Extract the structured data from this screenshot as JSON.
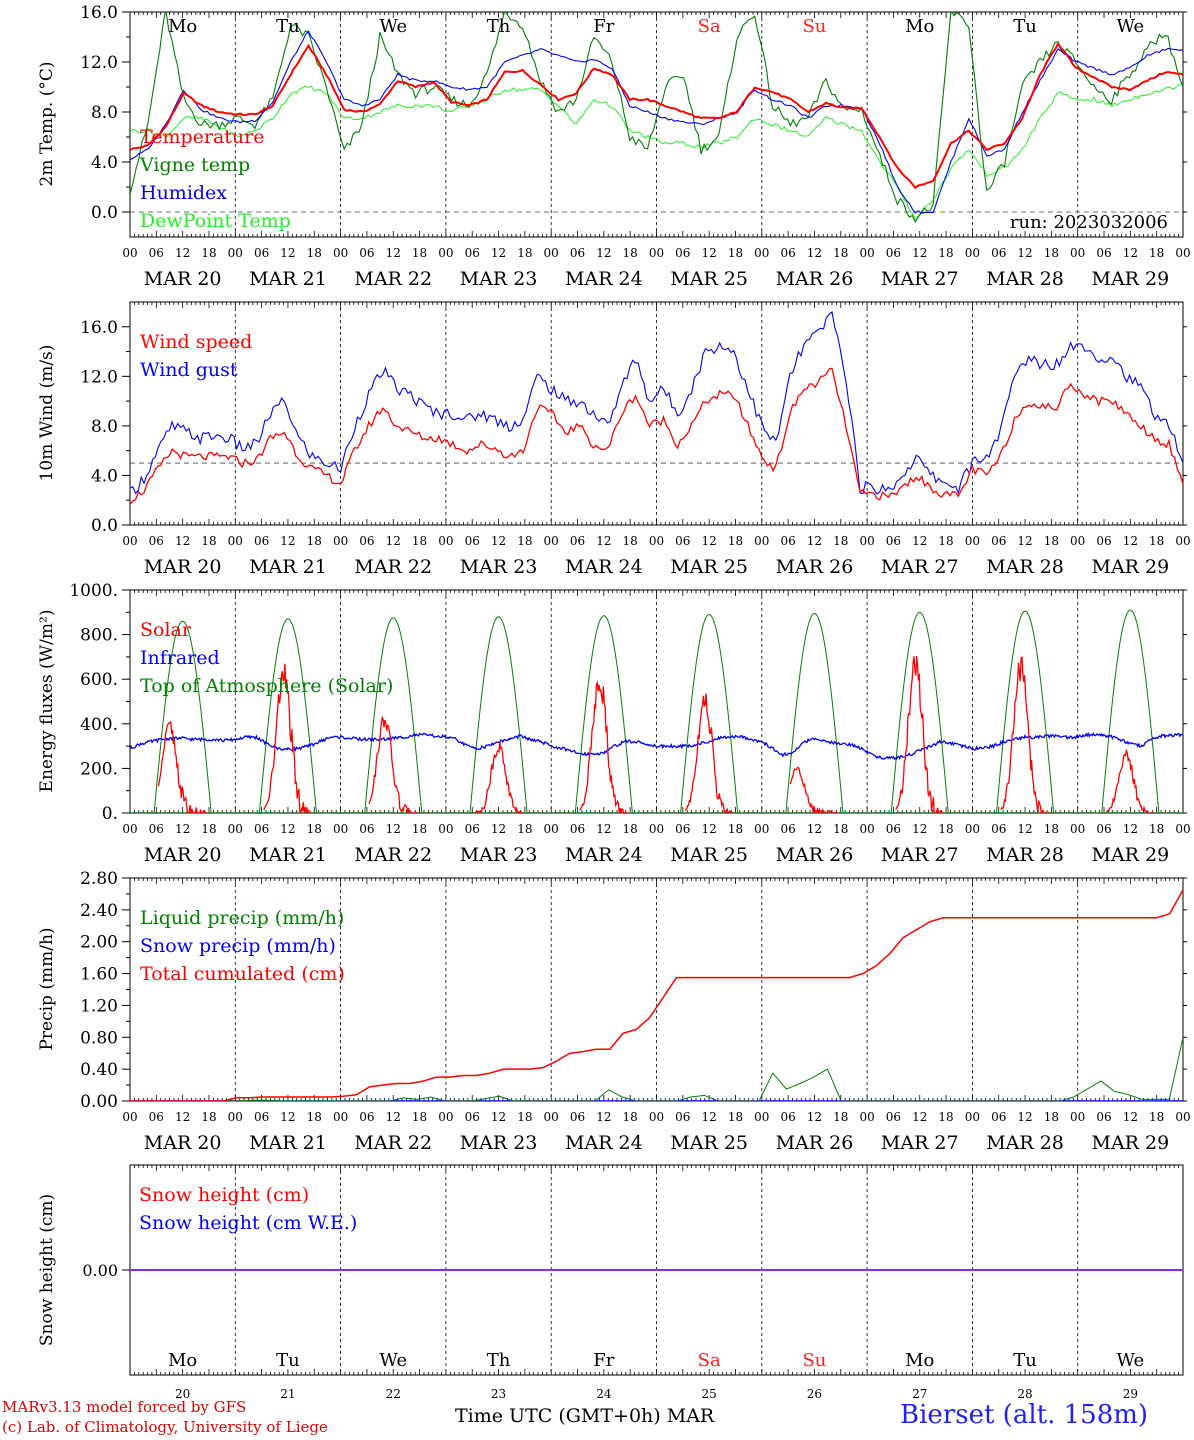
{
  "colors": {
    "red": "#ff0000",
    "dgreen": "#008000",
    "blue": "#0000ff",
    "lgreen": "#22ee22",
    "purple": "#8a2be2",
    "weekend": "#ff2020"
  },
  "days": [
    "Mo",
    "Tu",
    "We",
    "Th",
    "Fr",
    "Sa",
    "Su",
    "Mo",
    "Tu",
    "We"
  ],
  "weekend_days": [
    "Sa",
    "Su"
  ],
  "hour_labels": [
    "00",
    "06",
    "12",
    "18"
  ],
  "end_hour_label": "00",
  "date_labels": [
    "MAR 20",
    "MAR 21",
    "MAR 22",
    "MAR 23",
    "MAR 24",
    "MAR 25",
    "MAR 26",
    "MAR 27",
    "MAR 28",
    "MAR 29"
  ],
  "bottom_day_numbers": [
    "20",
    "21",
    "22",
    "23",
    "24",
    "25",
    "26",
    "27",
    "28",
    "29"
  ],
  "run_label": "run: 2023032006",
  "x_title": "Time UTC (GMT+0h)",
  "x_month": "MAR",
  "credit_line1": "MARv3.13 model forced by GFS",
  "credit_line2": "(c) Lab. of Climatology, University of Liege",
  "station": "Bierset (alt. 158m)",
  "chart_data": [
    {
      "type": "line",
      "ylabel": "2m Temp. (°C)",
      "ylim": [
        -2,
        16
      ],
      "yticks": [
        "16.0",
        "12.0",
        "8.0",
        "4.0",
        "0.0"
      ],
      "ref_line": 0,
      "x_unit": "hours since 2023-03-20 00 UTC, 3-hourly, 0-240",
      "series": [
        {
          "name": "Temperature",
          "color": "red",
          "values": [
            5,
            5.3,
            6.8,
            9.5,
            8.5,
            8,
            7.8,
            7.8,
            8.5,
            11,
            13.3,
            11,
            8.2,
            8,
            8.6,
            10.5,
            10,
            10.4,
            8.8,
            8.5,
            9,
            11.2,
            11.3,
            10.2,
            9,
            9.5,
            11.5,
            11,
            9,
            9,
            8.5,
            8,
            7.5,
            7.5,
            8,
            10,
            9.6,
            9,
            8,
            8.7,
            8.3,
            8.3,
            6,
            3.5,
            2,
            2.5,
            5.5,
            6.5,
            5,
            5.5,
            7.5,
            11,
            13.5,
            11.5,
            10.8,
            10,
            9.8,
            10.5,
            11.2,
            11
          ]
        },
        {
          "name": "Vigne temp",
          "color": "dgreen",
          "values": [
            1.8,
            7,
            16,
            9,
            7,
            7,
            7.5,
            7,
            9,
            15,
            14,
            10,
            4.8,
            7,
            14,
            11,
            9.5,
            10,
            9,
            8.5,
            11,
            16,
            15,
            10.5,
            8,
            9,
            14,
            12,
            6,
            5,
            10,
            11,
            5,
            6,
            14,
            16,
            8.5,
            7,
            7.5,
            10.5,
            8.2,
            8.2,
            4.5,
            1,
            -0.5,
            0.5,
            16,
            15,
            1.5,
            4,
            10,
            12,
            13.5,
            12,
            10,
            9,
            11,
            13,
            14.5,
            10
          ]
        },
        {
          "name": "Humidex",
          "color": "blue",
          "values": [
            4.2,
            5,
            7,
            9.8,
            8.2,
            7.5,
            7.2,
            7.3,
            8.8,
            12,
            14.5,
            12,
            9,
            8.5,
            9,
            11,
            10.5,
            10.5,
            10,
            9.8,
            10,
            12,
            12.5,
            13,
            12.5,
            12,
            12.2,
            11.5,
            8.5,
            8,
            7.5,
            7.2,
            7,
            7.5,
            8,
            9.8,
            9,
            8.5,
            7.5,
            8.5,
            8.5,
            8.3,
            5.5,
            2,
            0,
            0,
            4,
            7.5,
            4.5,
            5,
            8,
            10.5,
            13,
            12,
            11.5,
            11,
            11.5,
            12.5,
            13,
            13
          ]
        },
        {
          "name": "DewPoint Temp",
          "color": "lgreen",
          "values": [
            6.5,
            6.5,
            6,
            7.5,
            7.5,
            6.8,
            6,
            6.5,
            7.5,
            9.5,
            10,
            9.5,
            7.5,
            7.5,
            8,
            8.5,
            8.5,
            8.5,
            8,
            8.5,
            9,
            9.8,
            9.8,
            9.8,
            8.5,
            7,
            9,
            8.5,
            6.5,
            6,
            5.5,
            5.5,
            5.2,
            5.5,
            6,
            7.5,
            7,
            6.5,
            6,
            7.5,
            7,
            6.5,
            4,
            2,
            -0.5,
            1,
            3.5,
            5,
            3,
            3.5,
            5,
            7.5,
            9.5,
            9,
            9,
            8.5,
            9,
            9.5,
            9.8,
            10.2
          ]
        }
      ]
    },
    {
      "type": "line",
      "ylabel": "10m Wind (m/s)",
      "ylim": [
        0,
        18
      ],
      "yticks": [
        "16.0",
        "12.0",
        "8.0",
        "4.0",
        "0.0"
      ],
      "ref_line": 5,
      "x_unit": "hours since 2023-03-20 00 UTC, 3-hourly, 0-240",
      "series": [
        {
          "name": "Wind speed",
          "color": "red",
          "values": [
            2,
            2.8,
            4.5,
            6,
            5.5,
            5.5,
            5.5,
            5.5,
            5,
            5.2,
            7,
            7.5,
            5.5,
            4.5,
            4,
            3.3,
            6,
            8,
            9.5,
            8,
            7.5,
            7,
            7,
            6.5,
            6,
            6.5,
            6.2,
            5.5,
            6,
            9.5,
            9,
            7.5,
            8,
            6.5,
            6,
            9,
            10.5,
            8,
            8.5,
            6.5,
            8,
            10,
            10.5,
            10.5,
            8,
            5.5,
            4.5,
            9,
            11,
            11.5,
            12.5,
            8,
            2.5,
            2.5,
            2.2,
            3,
            4,
            3,
            2.5,
            2.3,
            4.5,
            4,
            5.5,
            8.5,
            10,
            9.5,
            9.5,
            11.5,
            10.5,
            10,
            10,
            9,
            8,
            7,
            6.5,
            3.3
          ]
        },
        {
          "name": "Wind gust",
          "color": "blue",
          "values": [
            2.5,
            3.8,
            6,
            8,
            7.5,
            7,
            7.2,
            7,
            6.2,
            6.5,
            9,
            10,
            7,
            5.5,
            5,
            4.5,
            8,
            10.5,
            12.5,
            11,
            10.5,
            9.5,
            9,
            9,
            8.5,
            9,
            8.5,
            8,
            8.5,
            12,
            11,
            10,
            10,
            9,
            8,
            11,
            13.5,
            10,
            11,
            9,
            11,
            14,
            14.5,
            14,
            11,
            8,
            6.5,
            12,
            14.5,
            15.5,
            17,
            12,
            3,
            3,
            2.8,
            4,
            5.5,
            4,
            3.5,
            3,
            5,
            5.5,
            7.5,
            12,
            13.5,
            13,
            13,
            14.5,
            14.5,
            13.5,
            13.5,
            12,
            11,
            9,
            8,
            5
          ]
        }
      ]
    },
    {
      "type": "line",
      "ylabel": "Energy fluxes (W/m²)",
      "ylim": [
        0,
        1000
      ],
      "yticks": [
        "1000.",
        "800.",
        "600.",
        "400.",
        "200.",
        "0."
      ],
      "x_unit": "hours since 2023-03-20 00 UTC",
      "series": [
        {
          "name": "Solar",
          "color": "red",
          "peaks": [
            {
              "t": 9,
              "v": 390
            },
            {
              "t": 35,
              "v": 620
            },
            {
              "t": 58,
              "v": 420
            },
            {
              "t": 84,
              "v": 300
            },
            {
              "t": 107,
              "v": 600
            },
            {
              "t": 131,
              "v": 510
            },
            {
              "t": 152,
              "v": 200
            },
            {
              "t": 179,
              "v": 670
            },
            {
              "t": 203,
              "v": 650
            },
            {
              "t": 227,
              "v": 260
            }
          ]
        },
        {
          "name": "Infrared",
          "color": "blue",
          "values": [
            290,
            310,
            320,
            330,
            335,
            335,
            330,
            330,
            330,
            325,
            330,
            340,
            340,
            310,
            290,
            285,
            290,
            300,
            320,
            340,
            340,
            335,
            330,
            330,
            330,
            335,
            340,
            350,
            350,
            345,
            340,
            330,
            300,
            290,
            300,
            320,
            330,
            345,
            330,
            320,
            300,
            290,
            275,
            265,
            265,
            270,
            300,
            320,
            320,
            310,
            300,
            300,
            300,
            300,
            310,
            320,
            335,
            340,
            345,
            330,
            320,
            290,
            260,
            270,
            320,
            330,
            320,
            315,
            310,
            300,
            275,
            250,
            245,
            250,
            260,
            280,
            300,
            320,
            310,
            300,
            290,
            290,
            300,
            320,
            330,
            340,
            340,
            345,
            345,
            340,
            340,
            350,
            350,
            345,
            330,
            310,
            300,
            330,
            345,
            350,
            350
          ]
        },
        {
          "name": "Top of Atmosphere (Solar)",
          "color": "dgreen",
          "peaks": [
            860,
            870,
            875,
            880,
            885,
            890,
            895,
            900,
            905,
            910
          ]
        }
      ]
    },
    {
      "type": "line",
      "ylabel": "Precip (mm/h)",
      "ylim": [
        0,
        2.8
      ],
      "yticks": [
        "2.80",
        "2.40",
        "2.00",
        "1.60",
        "1.20",
        "0.80",
        "0.40",
        "0.00"
      ],
      "x_unit": "hours since 2023-03-20 00 UTC, 3-hourly, 0-240",
      "series": [
        {
          "name": "Liquid precip (mm/h)",
          "color": "dgreen",
          "values": [
            0,
            0,
            0,
            0,
            0,
            0,
            0,
            0,
            0,
            0.01,
            0.01,
            0,
            0,
            0,
            0,
            0,
            0,
            0,
            0,
            0,
            0.04,
            0.02,
            0.05,
            0,
            0,
            0,
            0.03,
            0.06,
            0,
            0,
            0,
            0,
            0,
            0,
            0,
            0.14,
            0.05,
            0,
            0,
            0,
            0,
            0.05,
            0.07,
            0,
            0,
            0,
            0,
            0.35,
            0.15,
            0.22,
            0.3,
            0.4,
            0,
            0,
            0,
            0,
            0,
            0,
            0,
            0,
            0,
            0,
            0,
            0,
            0,
            0,
            0,
            0,
            0,
            0.05,
            0.15,
            0.25,
            0.12,
            0.08,
            0.02,
            0.02,
            0.02,
            0.8
          ]
        },
        {
          "name": "Snow precip (mm/h)",
          "color": "blue",
          "values": [
            0,
            0
          ]
        },
        {
          "name": "Total cumulated (cm)",
          "color": "red",
          "values": [
            0,
            0,
            0,
            0,
            0,
            0,
            0,
            0,
            0.04,
            0.04,
            0.05,
            0.05,
            0.05,
            0.05,
            0.05,
            0.05,
            0.06,
            0.08,
            0.18,
            0.2,
            0.22,
            0.22,
            0.25,
            0.3,
            0.3,
            0.32,
            0.32,
            0.35,
            0.4,
            0.4,
            0.4,
            0.42,
            0.5,
            0.6,
            0.62,
            0.65,
            0.65,
            0.85,
            0.9,
            1.05,
            1.3,
            1.55,
            1.55,
            1.55,
            1.55,
            1.55,
            1.55,
            1.55,
            1.55,
            1.55,
            1.55,
            1.55,
            1.55,
            1.55,
            1.55,
            1.6,
            1.7,
            1.85,
            2.05,
            2.15,
            2.25,
            2.3,
            2.3,
            2.3,
            2.3,
            2.3,
            2.3,
            2.3,
            2.3,
            2.3,
            2.3,
            2.3,
            2.3,
            2.3,
            2.3,
            2.3,
            2.3,
            2.3,
            2.35,
            2.65
          ]
        }
      ]
    },
    {
      "type": "line",
      "ylabel": "Snow height (cm)",
      "yticks": [
        "0.00"
      ],
      "series": [
        {
          "name": "Snow height (cm)",
          "color": "red",
          "values": [
            0,
            0
          ]
        },
        {
          "name": "Snow height (cm W.E.)",
          "color": "blue",
          "values": [
            0,
            0
          ]
        }
      ]
    }
  ]
}
